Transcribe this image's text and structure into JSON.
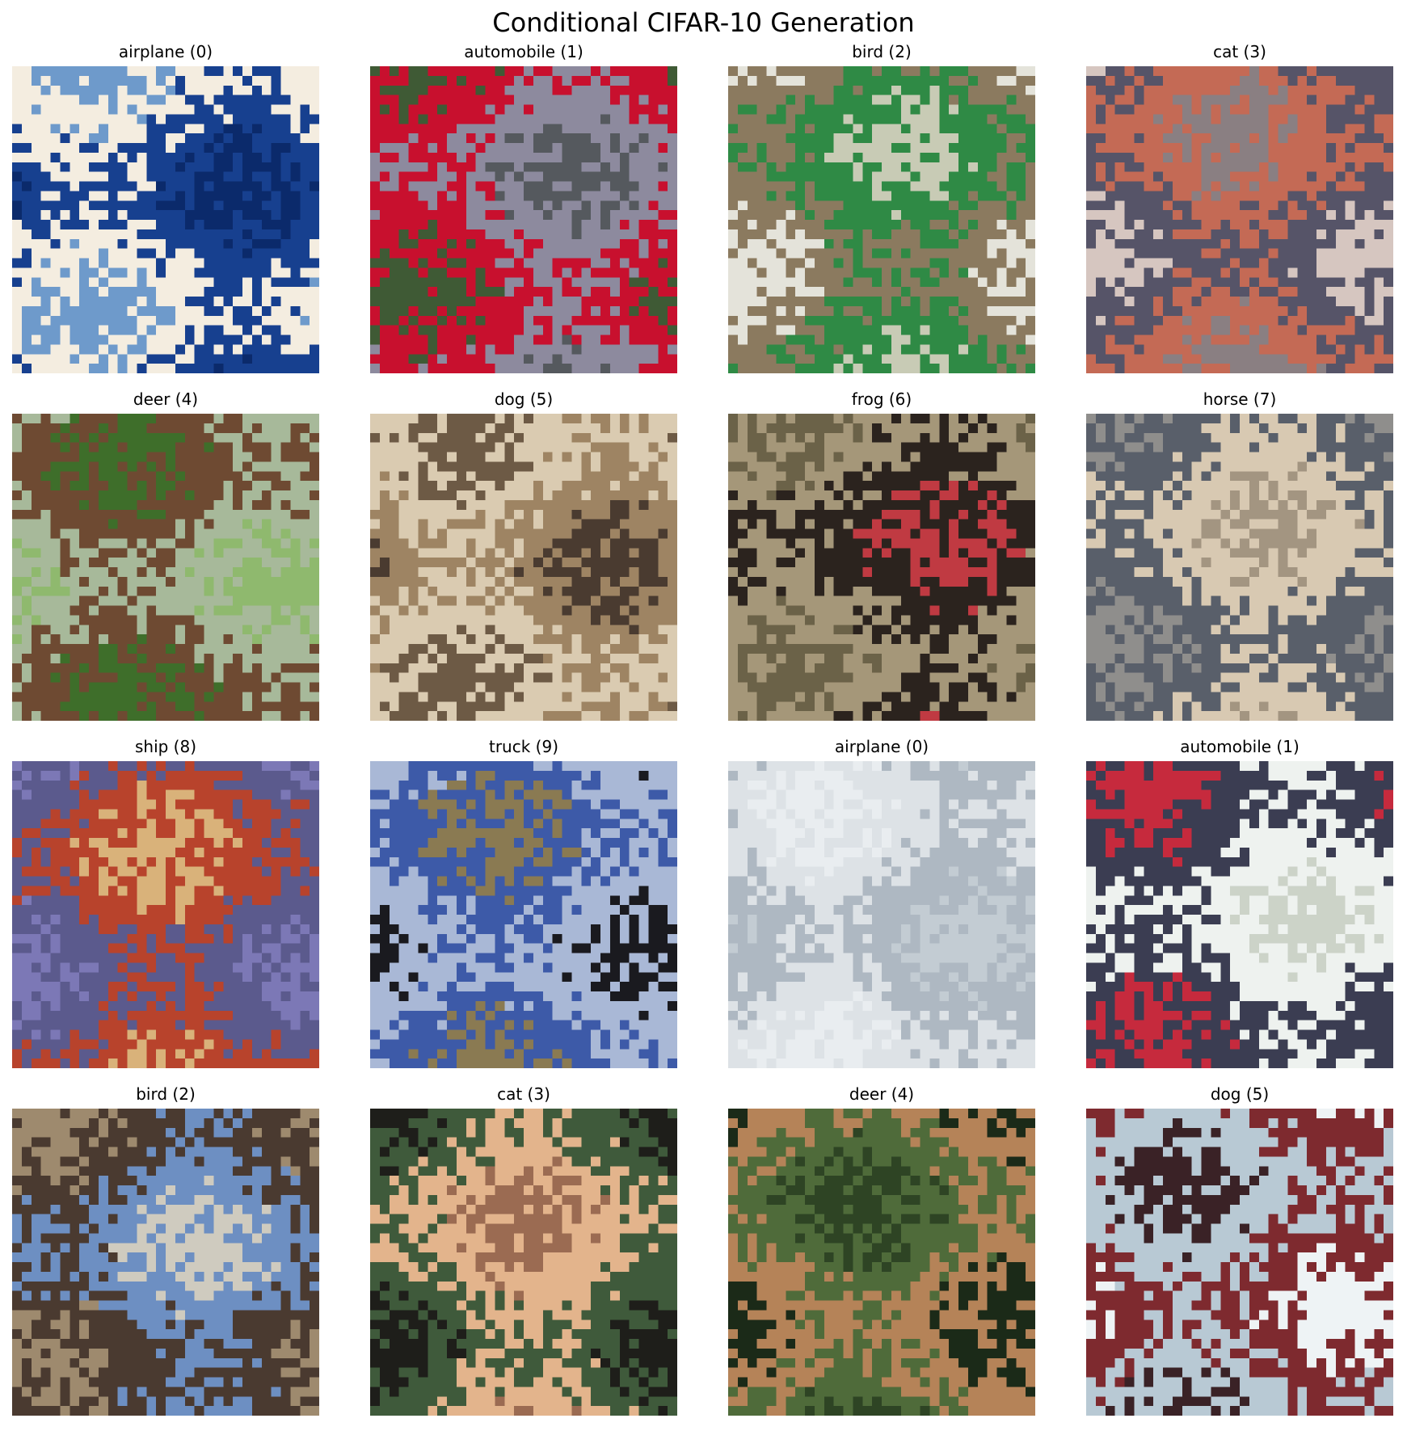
{
  "figure": {
    "title": "Conditional CIFAR-10 Generation",
    "samples": [
      {
        "label": "airplane (0)",
        "class_id": 0,
        "palette": [
          "#0b2a6b",
          "#17408f",
          "#f4ede0",
          "#6e9acb"
        ]
      },
      {
        "label": "automobile (1)",
        "class_id": 1,
        "palette": [
          "#55595e",
          "#8d8a9e",
          "#c8102e",
          "#3f5a35"
        ]
      },
      {
        "label": "bird (2)",
        "class_id": 2,
        "palette": [
          "#c8cbb5",
          "#2f8a45",
          "#8b7a5f",
          "#e4e3da"
        ]
      },
      {
        "label": "cat (3)",
        "class_id": 3,
        "palette": [
          "#8a7f82",
          "#c46a55",
          "#565468",
          "#d6c6c0"
        ]
      },
      {
        "label": "deer (4)",
        "class_id": 4,
        "palette": [
          "#3e6e2a",
          "#6e4a32",
          "#a7b99a",
          "#8fb96e"
        ]
      },
      {
        "label": "dog (5)",
        "class_id": 5,
        "palette": [
          "#6d5a45",
          "#dacbb1",
          "#9e8463",
          "#4a3b30"
        ]
      },
      {
        "label": "frog (6)",
        "class_id": 6,
        "palette": [
          "#6b6248",
          "#a59779",
          "#2b231e",
          "#c03a42"
        ]
      },
      {
        "label": "horse (7)",
        "class_id": 7,
        "palette": [
          "#8f8e8c",
          "#595f6a",
          "#d8c9b2",
          "#a39581"
        ]
      },
      {
        "label": "ship (8)",
        "class_id": 8,
        "palette": [
          "#7c78b6",
          "#5b5a8d",
          "#b8432c",
          "#d9b27a"
        ]
      },
      {
        "label": "truck (9)",
        "class_id": 9,
        "palette": [
          "#1a1a1f",
          "#a9b8d6",
          "#3d5aa8",
          "#8a7a52"
        ]
      },
      {
        "label": "airplane (0)",
        "class_id": 0,
        "palette": [
          "#c3ccd3",
          "#aeb8c2",
          "#dde2e6",
          "#e9edf0"
        ]
      },
      {
        "label": "automobile (1)",
        "class_id": 1,
        "palette": [
          "#ccd3c8",
          "#eef2ef",
          "#3b3d52",
          "#c62a3d"
        ]
      },
      {
        "label": "bird (2)",
        "class_id": 2,
        "palette": [
          "#cfcbbf",
          "#6d8fc2",
          "#4a3a30",
          "#9e8a6e"
        ]
      },
      {
        "label": "cat (3)",
        "class_id": 3,
        "palette": [
          "#9b6b52",
          "#e3b48c",
          "#3f5a3b",
          "#1e1e1a"
        ]
      },
      {
        "label": "deer (4)",
        "class_id": 4,
        "palette": [
          "#2e4424",
          "#4f6b3a",
          "#b58358",
          "#1b2a18"
        ]
      },
      {
        "label": "dog (5)",
        "class_id": 5,
        "palette": [
          "#3a2226",
          "#b8c9d4",
          "#7e2a2f",
          "#eef3f5"
        ]
      }
    ]
  }
}
